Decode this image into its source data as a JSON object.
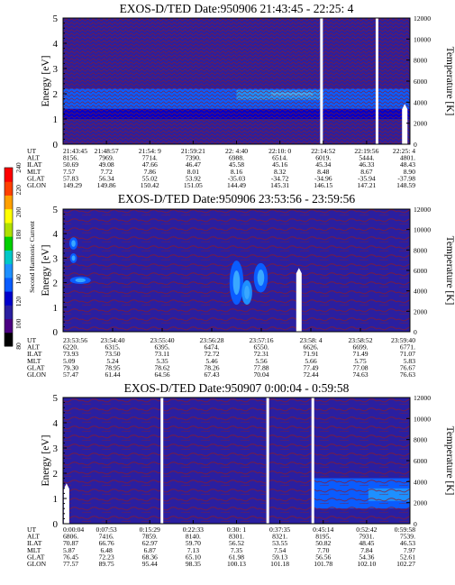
{
  "chart_data": [
    {
      "type": "heatmap",
      "title": "EXOS-D/TED  Date:950906  21:43:45 - 22:25: 4",
      "ylabel": "Energy [eV]",
      "y2label": "Temperature [K]",
      "ylim": [
        0,
        5
      ],
      "yticks": [
        "0",
        "1",
        "2",
        "3",
        "4",
        "5"
      ],
      "y2ticks": [
        "0",
        "2000",
        "4000",
        "6000",
        "8000",
        "10000",
        "12000"
      ],
      "gaps": [
        0.745,
        0.905
      ],
      "dense": true,
      "bands": [
        {
          "y0": 1.4,
          "y1": 2.2,
          "color": "#0a5cff",
          "x0": 0.0,
          "x1": 1.0
        },
        {
          "y0": 1.75,
          "y1": 2.15,
          "color": "#1e90ff",
          "x0": 0.5,
          "x1": 0.75
        },
        {
          "y0": 1.9,
          "y1": 2.05,
          "color": "#3aa8ff",
          "x0": 0.6,
          "x1": 0.72
        },
        {
          "y0": 1.0,
          "y1": 1.4,
          "color": "#0000cc",
          "x0": 0.0,
          "x1": 1.0
        },
        {
          "y0": 0.0,
          "y1": 1.0,
          "color": "#2a1fa0",
          "x0": 0.0,
          "x1": 1.0
        }
      ],
      "blobs": [],
      "hot_bar": {
        "x": 0.985,
        "y0": 0.0,
        "y1": 1.6
      },
      "info_table": {
        "rows": [
          {
            "label": "UT",
            "values": [
              "21:43:45",
              "21:48:57",
              "21:54: 9",
              "21:59:21",
              "22: 4:40",
              "22:10: 0",
              "22:14:52",
              "22:19:56",
              "22:25: 4"
            ]
          },
          {
            "label": "ALT",
            "values": [
              "8156.",
              "7969.",
              "7714.",
              "7390.",
              "6988.",
              "6514.",
              "6019.",
              "5444.",
              "4801."
            ]
          },
          {
            "label": "ILAT",
            "values": [
              "50.69",
              "49.08",
              "47.66",
              "46.47",
              "45.58",
              "45.16",
              "45.34",
              "46.33",
              "48.43"
            ]
          },
          {
            "label": "MLT",
            "values": [
              "7.57",
              "7.72",
              "7.86",
              "8.01",
              "8.16",
              "8.32",
              "8.48",
              "8.67",
              "8.90"
            ]
          },
          {
            "label": "GLAT",
            "values": [
              "57.83",
              "56.34",
              "55.02",
              "53.92",
              "-35.03",
              "-34.72",
              "-34.96",
              "-35.94",
              "-37.98"
            ]
          },
          {
            "label": "GLON",
            "values": [
              "149.29",
              "149.86",
              "150.42",
              "151.05",
              "144.49",
              "145.31",
              "146.15",
              "147.21",
              "148.59"
            ]
          }
        ]
      }
    },
    {
      "type": "heatmap",
      "title": "EXOS-D/TED   Date:950906  23:53:56 - 23:59:56",
      "ylabel": "Energy [eV]",
      "y2label": "Temperature [K]",
      "ylim": [
        0,
        5
      ],
      "yticks": [
        "0",
        "1",
        "2",
        "3",
        "4",
        "5"
      ],
      "y2ticks": [
        "0",
        "2000",
        "4000",
        "6000",
        "8000",
        "10000",
        "12000"
      ],
      "gaps": [],
      "dense": false,
      "bands": [
        {
          "y0": 0.0,
          "y1": 5.0,
          "color": "#2a1fa0",
          "x0": 0.0,
          "x1": 1.0
        }
      ],
      "blobs": [
        {
          "cx": 0.03,
          "cy": 3.6,
          "rx": 0.012,
          "ry": 0.25,
          "color": "#0a5cff"
        },
        {
          "cx": 0.03,
          "cy": 3.0,
          "rx": 0.01,
          "ry": 0.2,
          "color": "#0a5cff"
        },
        {
          "cx": 0.05,
          "cy": 2.1,
          "rx": 0.03,
          "ry": 0.15,
          "color": "#0a5cff"
        },
        {
          "cx": 0.5,
          "cy": 2.0,
          "rx": 0.02,
          "ry": 0.9,
          "color": "#0a5cff"
        },
        {
          "cx": 0.53,
          "cy": 1.6,
          "rx": 0.015,
          "ry": 0.5,
          "color": "#1e90ff"
        },
        {
          "cx": 0.57,
          "cy": 2.2,
          "rx": 0.02,
          "ry": 0.6,
          "color": "#0a5cff"
        }
      ],
      "hot_bar": {
        "x": 0.68,
        "y0": 0.0,
        "y1": 2.6
      },
      "info_table": {
        "rows": [
          {
            "label": "UT",
            "values": [
              "23:53:56",
              "23:54:40",
              "23:55:40",
              "23:56:28",
              "23:57:16",
              "23:58: 4",
              "23:58:52",
              "23:59:40"
            ]
          },
          {
            "label": "ALT",
            "values": [
              "6220.",
              "6315.",
              "6395.",
              "6474.",
              "6550.",
              "6626.",
              "6699.",
              "6771."
            ]
          },
          {
            "label": "ILAT",
            "values": [
              "73.93",
              "73.50",
              "73.11",
              "72.72",
              "72.31",
              "71.91",
              "71.49",
              "71.07"
            ]
          },
          {
            "label": "MLT",
            "values": [
              "5.09",
              "5.24",
              "5.35",
              "5.46",
              "5.56",
              "5.66",
              "5.75",
              "5.83"
            ]
          },
          {
            "label": "GLAT",
            "values": [
              "79.30",
              "78.95",
              "78.62",
              "78.26",
              "77.88",
              "77.49",
              "77.08",
              "76.67"
            ]
          },
          {
            "label": "GLON",
            "values": [
              "57.47",
              "61.44",
              "64.56",
              "67.43",
              "70.04",
              "72.44",
              "74.63",
              "76.63"
            ]
          }
        ]
      }
    },
    {
      "type": "heatmap",
      "title": "EXOS-D/TED   Date:950907  0:00:04 - 0:59:58",
      "ylabel": "Energy [eV]",
      "y2label": "Temperature [K]",
      "ylim": [
        0,
        5
      ],
      "yticks": [
        "0",
        "1",
        "2",
        "3",
        "4",
        "5"
      ],
      "y2ticks": [
        "0",
        "2000",
        "4000",
        "6000",
        "8000",
        "10000",
        "12000"
      ],
      "gaps": [
        0.285,
        0.59,
        0.72
      ],
      "dense": false,
      "bands": [
        {
          "y0": 0.0,
          "y1": 5.0,
          "color": "#2a1fa0",
          "x0": 0.0,
          "x1": 1.0
        },
        {
          "y0": 0.6,
          "y1": 1.8,
          "color": "#0a5cff",
          "x0": 0.72,
          "x1": 1.0
        },
        {
          "y0": 0.9,
          "y1": 1.4,
          "color": "#1e90ff",
          "x0": 0.88,
          "x1": 1.0
        }
      ],
      "blobs": [],
      "hot_bar": {
        "x": 0.01,
        "y0": 0.0,
        "y1": 1.6
      },
      "info_table": {
        "rows": [
          {
            "label": "UT",
            "values": [
              "0:00:04",
              "0:07:53",
              "0:15:29",
              "0:22:33",
              "0:30: 1",
              "0:37:35",
              "0:45:14",
              "0:52:42",
              "0:59:58"
            ]
          },
          {
            "label": "ALT",
            "values": [
              "6806.",
              "7416.",
              "7859.",
              "8140.",
              "8301.",
              "8321.",
              "8195.",
              "7931.",
              "7539."
            ]
          },
          {
            "label": "ILAT",
            "values": [
              "70.87",
              "66.76",
              "62.97",
              "59.70",
              "56.52",
              "53.55",
              "50.82",
              "48.45",
              "46.53"
            ]
          },
          {
            "label": "MLT",
            "values": [
              "5.87",
              "6.48",
              "6.87",
              "7.13",
              "7.35",
              "7.54",
              "7.70",
              "7.84",
              "7.97"
            ]
          },
          {
            "label": "GLAT",
            "values": [
              "76.45",
              "72.23",
              "68.36",
              "65.10",
              "61.98",
              "59.13",
              "56.56",
              "54.36",
              "52.61"
            ]
          },
          {
            "label": "GLON",
            "values": [
              "77.57",
              "89.75",
              "95.44",
              "98.35",
              "100.13",
              "101.18",
              "101.78",
              "102.10",
              "102.27"
            ]
          }
        ]
      }
    }
  ],
  "colorbar": {
    "label": "Second Harmonic Current",
    "ticks": [
      "80",
      "100",
      "120",
      "140",
      "160",
      "180",
      "200",
      "220",
      "240"
    ],
    "colors": [
      "#000000",
      "#4b0082",
      "#2a1fa0",
      "#0000cc",
      "#0a5cff",
      "#1e90ff",
      "#00c8c8",
      "#00d000",
      "#b0e000",
      "#ffff00",
      "#ffa000",
      "#ff4000",
      "#ff0000"
    ]
  },
  "colors": {
    "background_field": "#2a1fa0",
    "contour": "#8b1a2b",
    "hot": "#ffffff"
  }
}
